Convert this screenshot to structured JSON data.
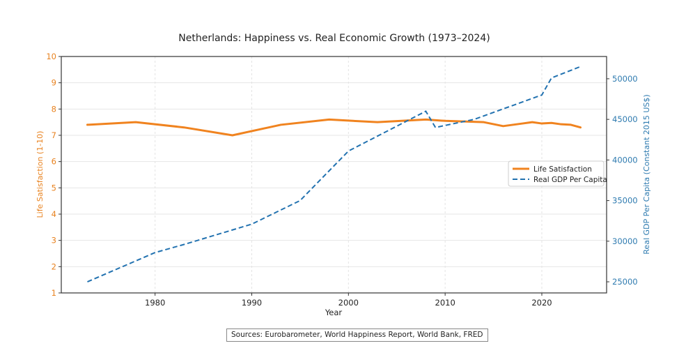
{
  "chart_data": {
    "type": "line",
    "title": "Netherlands: Happiness vs. Real Economic Growth (1973–2024)",
    "xlabel": "Year",
    "ylabel_left": "Life Satisfaction (1-10)",
    "ylabel_right": "Real GDP Per Capita (Constant 2015 US$)",
    "xlim": [
      1970.3,
      2026.7
    ],
    "ylim_left": [
      1,
      10
    ],
    "ylim_right": [
      23630,
      52740
    ],
    "x_ticks": [
      1980,
      1990,
      2000,
      2010,
      2020
    ],
    "y_ticks_left": [
      1,
      2,
      3,
      4,
      5,
      6,
      7,
      8,
      9,
      10
    ],
    "y_ticks_right": [
      25000,
      30000,
      35000,
      40000,
      45000,
      50000
    ],
    "grid": true,
    "legend_position": "center-right",
    "colors": {
      "life": "#f0831f",
      "gdp": "#2272b0",
      "left_axis": "#e8821f",
      "right_axis": "#2f7bb0"
    },
    "series": [
      {
        "name": "Life Satisfaction",
        "axis": "left",
        "style": "solid",
        "x": [
          1973,
          1978,
          1983,
          1988,
          1993,
          1998,
          2003,
          2008,
          2010,
          2014,
          2016,
          2017,
          2018,
          2019,
          2020,
          2021,
          2022,
          2023,
          2024
        ],
        "values": [
          7.4,
          7.5,
          7.3,
          7.0,
          7.4,
          7.6,
          7.5,
          7.6,
          7.55,
          7.5,
          7.35,
          7.4,
          7.45,
          7.5,
          7.45,
          7.47,
          7.42,
          7.4,
          7.3
        ]
      },
      {
        "name": "Real GDP Per Capita",
        "axis": "right",
        "style": "dashed",
        "x": [
          1973,
          1980,
          1983,
          1990,
          1995,
          2000,
          2008,
          2009,
          2013,
          2020,
          2021,
          2024
        ],
        "values": [
          25000,
          28600,
          29600,
          32100,
          35000,
          41100,
          46000,
          44000,
          45000,
          48000,
          50100,
          51500
        ]
      }
    ],
    "source_note": "Sources: Eurobarometer, World Happiness Report, World Bank, FRED"
  }
}
